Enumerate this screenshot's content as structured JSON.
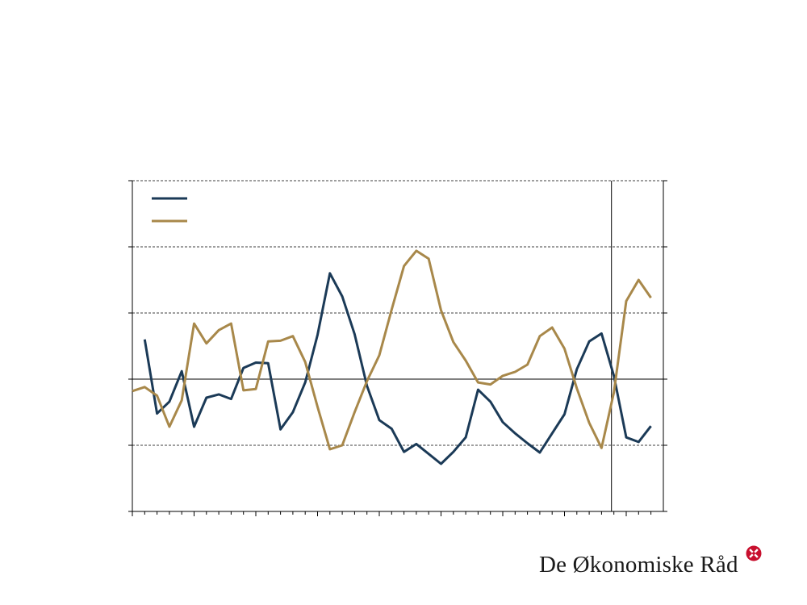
{
  "chart_data": {
    "type": "line",
    "title": "",
    "xlabel": "",
    "ylabel": "",
    "ylim": [
      -2.0,
      3.0
    ],
    "y_major_ticks": [
      -2.0,
      -1.0,
      0.0,
      1.0,
      2.0,
      3.0
    ],
    "x_count": 43,
    "forecast_start_index": 39,
    "grid": "dashed horizontal",
    "legend_position": "top-left",
    "series": [
      {
        "color": "#1b3a57",
        "values": [
          null,
          0.6,
          -0.52,
          -0.34,
          0.12,
          -0.72,
          -0.28,
          -0.23,
          -0.3,
          0.17,
          0.25,
          0.24,
          -0.76,
          -0.5,
          -0.05,
          0.67,
          1.6,
          1.25,
          0.68,
          -0.1,
          -0.62,
          -0.75,
          -1.1,
          -0.98,
          -1.13,
          -1.28,
          -1.1,
          -0.88,
          -0.16,
          -0.34,
          -0.65,
          -0.82,
          -0.97,
          -1.11,
          -0.82,
          -0.53,
          0.15,
          0.57,
          0.69,
          0.05,
          -0.88,
          -0.95,
          -0.71
        ]
      },
      {
        "color": "#a8884a",
        "values": [
          -0.18,
          -0.12,
          -0.25,
          -0.72,
          -0.32,
          0.84,
          0.54,
          0.74,
          0.84,
          -0.17,
          -0.15,
          0.57,
          0.58,
          0.65,
          0.26,
          -0.42,
          -1.06,
          -1.0,
          -0.5,
          -0.03,
          0.36,
          1.05,
          1.71,
          1.94,
          1.82,
          1.04,
          0.56,
          0.28,
          -0.05,
          -0.08,
          0.05,
          0.11,
          0.22,
          0.65,
          0.78,
          0.46,
          -0.14,
          -0.66,
          -1.04,
          -0.2,
          1.18,
          1.5,
          1.23
        ]
      }
    ]
  },
  "brand": {
    "name": "De Økonomiske Råd"
  }
}
